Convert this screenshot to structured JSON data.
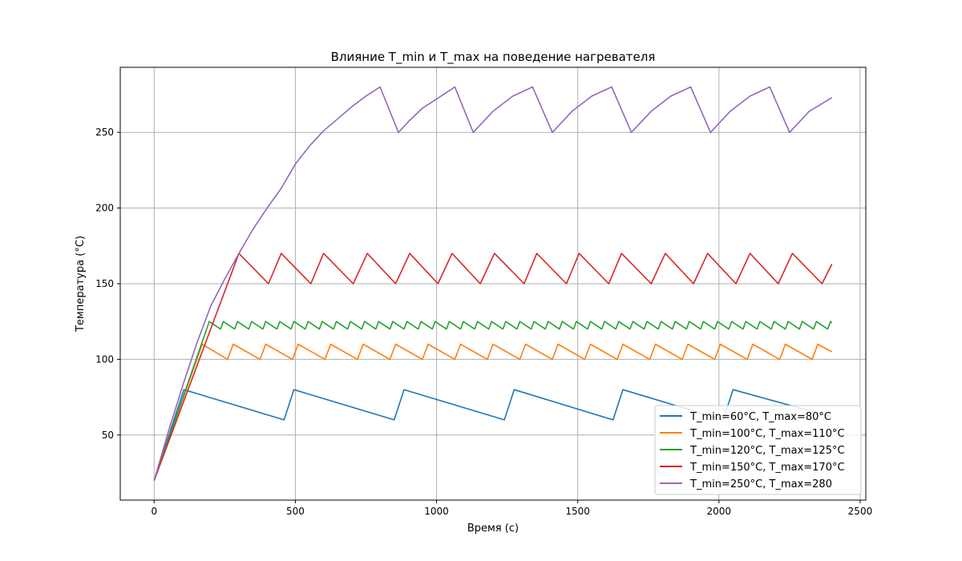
{
  "chart_data": {
    "type": "line",
    "title": "Влияние T_min и T_max на поведение нагревателя",
    "xlabel": "Время (с)",
    "ylabel": "Температура (°C)",
    "xlim": [
      -120,
      2520
    ],
    "ylim": [
      7,
      293
    ],
    "xticks": [
      0,
      500,
      1000,
      1500,
      2000,
      2500
    ],
    "yticks": [
      50,
      100,
      150,
      200,
      250
    ],
    "grid": true,
    "legend_position": "lower-right",
    "series": [
      {
        "name": "T_min=60°C, T_max=80°C",
        "color": "#1f77b4",
        "points": [
          [
            0,
            20
          ],
          [
            105,
            80
          ],
          [
            460,
            60
          ],
          [
            495,
            80
          ],
          [
            850,
            60
          ],
          [
            885,
            80
          ],
          [
            1240,
            60
          ],
          [
            1275,
            80
          ],
          [
            1625,
            60
          ],
          [
            1660,
            80
          ],
          [
            2015,
            60
          ],
          [
            2050,
            80
          ],
          [
            2400,
            62
          ]
        ]
      },
      {
        "name": "T_min=100°C, T_max=110°C",
        "color": "#ff7f0e",
        "points": [
          [
            0,
            20
          ],
          [
            170,
            110
          ],
          [
            260,
            100
          ],
          [
            280,
            110
          ],
          [
            375,
            100
          ],
          [
            395,
            110
          ],
          [
            490,
            100
          ],
          [
            510,
            110
          ],
          [
            605,
            100
          ],
          [
            625,
            110
          ],
          [
            720,
            100
          ],
          [
            740,
            110
          ],
          [
            835,
            100
          ],
          [
            855,
            110
          ],
          [
            950,
            100
          ],
          [
            970,
            110
          ],
          [
            1065,
            100
          ],
          [
            1085,
            110
          ],
          [
            1180,
            100
          ],
          [
            1200,
            110
          ],
          [
            1295,
            100
          ],
          [
            1315,
            110
          ],
          [
            1410,
            100
          ],
          [
            1430,
            110
          ],
          [
            1525,
            100
          ],
          [
            1545,
            110
          ],
          [
            1640,
            100
          ],
          [
            1660,
            110
          ],
          [
            1755,
            100
          ],
          [
            1775,
            110
          ],
          [
            1870,
            100
          ],
          [
            1890,
            110
          ],
          [
            1985,
            100
          ],
          [
            2005,
            110
          ],
          [
            2100,
            100
          ],
          [
            2120,
            110
          ],
          [
            2215,
            100
          ],
          [
            2235,
            110
          ],
          [
            2330,
            100
          ],
          [
            2350,
            110
          ],
          [
            2400,
            105
          ]
        ]
      },
      {
        "name": "T_min=120°C, T_max=125°C",
        "color": "#2ca02c",
        "points": [
          [
            0,
            20
          ],
          [
            195,
            125
          ],
          [
            235,
            120
          ],
          [
            245,
            125
          ],
          [
            285,
            120
          ],
          [
            295,
            125
          ],
          [
            335,
            120
          ],
          [
            345,
            125
          ],
          [
            385,
            120
          ],
          [
            395,
            125
          ],
          [
            435,
            120
          ],
          [
            445,
            125
          ],
          [
            485,
            120
          ],
          [
            495,
            125
          ],
          [
            535,
            120
          ],
          [
            545,
            125
          ],
          [
            585,
            120
          ],
          [
            595,
            125
          ],
          [
            635,
            120
          ],
          [
            645,
            125
          ],
          [
            685,
            120
          ],
          [
            695,
            125
          ],
          [
            735,
            120
          ],
          [
            745,
            125
          ],
          [
            785,
            120
          ],
          [
            795,
            125
          ],
          [
            835,
            120
          ],
          [
            845,
            125
          ],
          [
            885,
            120
          ],
          [
            895,
            125
          ],
          [
            935,
            120
          ],
          [
            945,
            125
          ],
          [
            985,
            120
          ],
          [
            995,
            125
          ],
          [
            1035,
            120
          ],
          [
            1045,
            125
          ],
          [
            1085,
            120
          ],
          [
            1095,
            125
          ],
          [
            1135,
            120
          ],
          [
            1145,
            125
          ],
          [
            1185,
            120
          ],
          [
            1195,
            125
          ],
          [
            1235,
            120
          ],
          [
            1245,
            125
          ],
          [
            1285,
            120
          ],
          [
            1295,
            125
          ],
          [
            1335,
            120
          ],
          [
            1345,
            125
          ],
          [
            1385,
            120
          ],
          [
            1395,
            125
          ],
          [
            1435,
            120
          ],
          [
            1445,
            125
          ],
          [
            1485,
            120
          ],
          [
            1495,
            125
          ],
          [
            1535,
            120
          ],
          [
            1545,
            125
          ],
          [
            1585,
            120
          ],
          [
            1595,
            125
          ],
          [
            1635,
            120
          ],
          [
            1645,
            125
          ],
          [
            1685,
            120
          ],
          [
            1695,
            125
          ],
          [
            1735,
            120
          ],
          [
            1745,
            125
          ],
          [
            1785,
            120
          ],
          [
            1795,
            125
          ],
          [
            1835,
            120
          ],
          [
            1845,
            125
          ],
          [
            1885,
            120
          ],
          [
            1895,
            125
          ],
          [
            1935,
            120
          ],
          [
            1945,
            125
          ],
          [
            1985,
            120
          ],
          [
            1995,
            125
          ],
          [
            2035,
            120
          ],
          [
            2045,
            125
          ],
          [
            2085,
            120
          ],
          [
            2095,
            125
          ],
          [
            2135,
            120
          ],
          [
            2145,
            125
          ],
          [
            2185,
            120
          ],
          [
            2195,
            125
          ],
          [
            2235,
            120
          ],
          [
            2245,
            125
          ],
          [
            2285,
            120
          ],
          [
            2295,
            125
          ],
          [
            2335,
            120
          ],
          [
            2345,
            125
          ],
          [
            2385,
            120
          ],
          [
            2395,
            125
          ],
          [
            2400,
            124
          ]
        ]
      },
      {
        "name": "T_min=150°C, T_max=170°C",
        "color": "#d62728",
        "points": [
          [
            0,
            20
          ],
          [
            300,
            170
          ],
          [
            405,
            150
          ],
          [
            450,
            170
          ],
          [
            555,
            150
          ],
          [
            600,
            170
          ],
          [
            705,
            150
          ],
          [
            755,
            170
          ],
          [
            855,
            150
          ],
          [
            905,
            170
          ],
          [
            1005,
            150
          ],
          [
            1055,
            170
          ],
          [
            1155,
            150
          ],
          [
            1205,
            170
          ],
          [
            1310,
            150
          ],
          [
            1355,
            170
          ],
          [
            1460,
            150
          ],
          [
            1505,
            170
          ],
          [
            1610,
            150
          ],
          [
            1655,
            170
          ],
          [
            1760,
            150
          ],
          [
            1810,
            170
          ],
          [
            1910,
            150
          ],
          [
            1960,
            170
          ],
          [
            2060,
            150
          ],
          [
            2110,
            170
          ],
          [
            2210,
            150
          ],
          [
            2260,
            170
          ],
          [
            2365,
            150
          ],
          [
            2400,
            163
          ]
        ]
      },
      {
        "name": "T_min=250°C, T_max=280",
        "color": "#9467bd",
        "points": [
          [
            0,
            20
          ],
          [
            50,
            52
          ],
          [
            100,
            82
          ],
          [
            150,
            110
          ],
          [
            200,
            135
          ],
          [
            250,
            153
          ],
          [
            300,
            170
          ],
          [
            350,
            186
          ],
          [
            400,
            200
          ],
          [
            450,
            213
          ],
          [
            500,
            229
          ],
          [
            550,
            241
          ],
          [
            600,
            251
          ],
          [
            650,
            259
          ],
          [
            700,
            267
          ],
          [
            750,
            274
          ],
          [
            800,
            280
          ],
          [
            865,
            250
          ],
          [
            900,
            257
          ],
          [
            950,
            266
          ],
          [
            1000,
            272
          ],
          [
            1065,
            280
          ],
          [
            1130,
            250
          ],
          [
            1200,
            264
          ],
          [
            1270,
            274
          ],
          [
            1340,
            280
          ],
          [
            1410,
            250
          ],
          [
            1480,
            264
          ],
          [
            1550,
            274
          ],
          [
            1620,
            280
          ],
          [
            1690,
            250
          ],
          [
            1760,
            264
          ],
          [
            1830,
            274
          ],
          [
            1900,
            280
          ],
          [
            1970,
            250
          ],
          [
            2040,
            264
          ],
          [
            2110,
            274
          ],
          [
            2180,
            280
          ],
          [
            2250,
            250
          ],
          [
            2320,
            264
          ],
          [
            2400,
            273
          ]
        ]
      }
    ]
  }
}
